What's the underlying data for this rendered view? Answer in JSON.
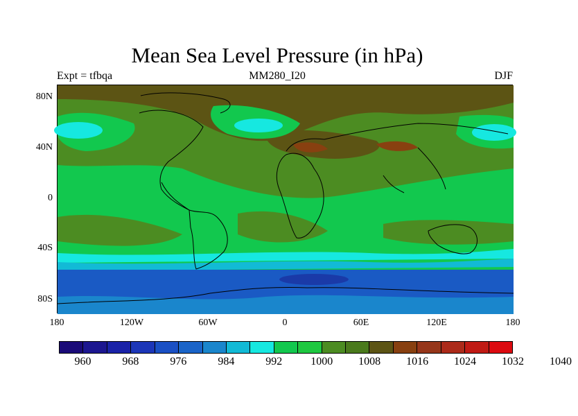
{
  "title": "Mean Sea Level Pressure (in hPa)",
  "subtitle_left": "Expt = tfbqa",
  "subtitle_center": "MM280_I20",
  "subtitle_right": "DJF",
  "lat_labels": [
    "80N",
    "40N",
    "0",
    "40S",
    "80S"
  ],
  "lon_labels": [
    "180",
    "120W",
    "60W",
    "0",
    "60E",
    "120E",
    "180"
  ],
  "colorbar": {
    "colors": [
      "#1a0a78",
      "#1c1690",
      "#1a22a8",
      "#1c36b8",
      "#1a50c4",
      "#1a64c8",
      "#1a86cc",
      "#12bad6",
      "#16e8e0",
      "#12c84e",
      "#1ec840",
      "#4c8c22",
      "#4a7a1c",
      "#5c5414",
      "#884010",
      "#96361a",
      "#ac2a1a",
      "#c01a14",
      "#dc0a10"
    ],
    "labels": [
      "960",
      "968",
      "976",
      "984",
      "992",
      "1000",
      "1008",
      "1016",
      "1024",
      "1032",
      "1040"
    ]
  },
  "regions": {
    "ocean_blue": "#1a5ac4",
    "deep_blue": "#1a3aa8",
    "cyan": "#16e8e0",
    "green": "#12c84e",
    "olive": "#4c8c22",
    "brown": "#5c5414",
    "rust": "#884010"
  }
}
